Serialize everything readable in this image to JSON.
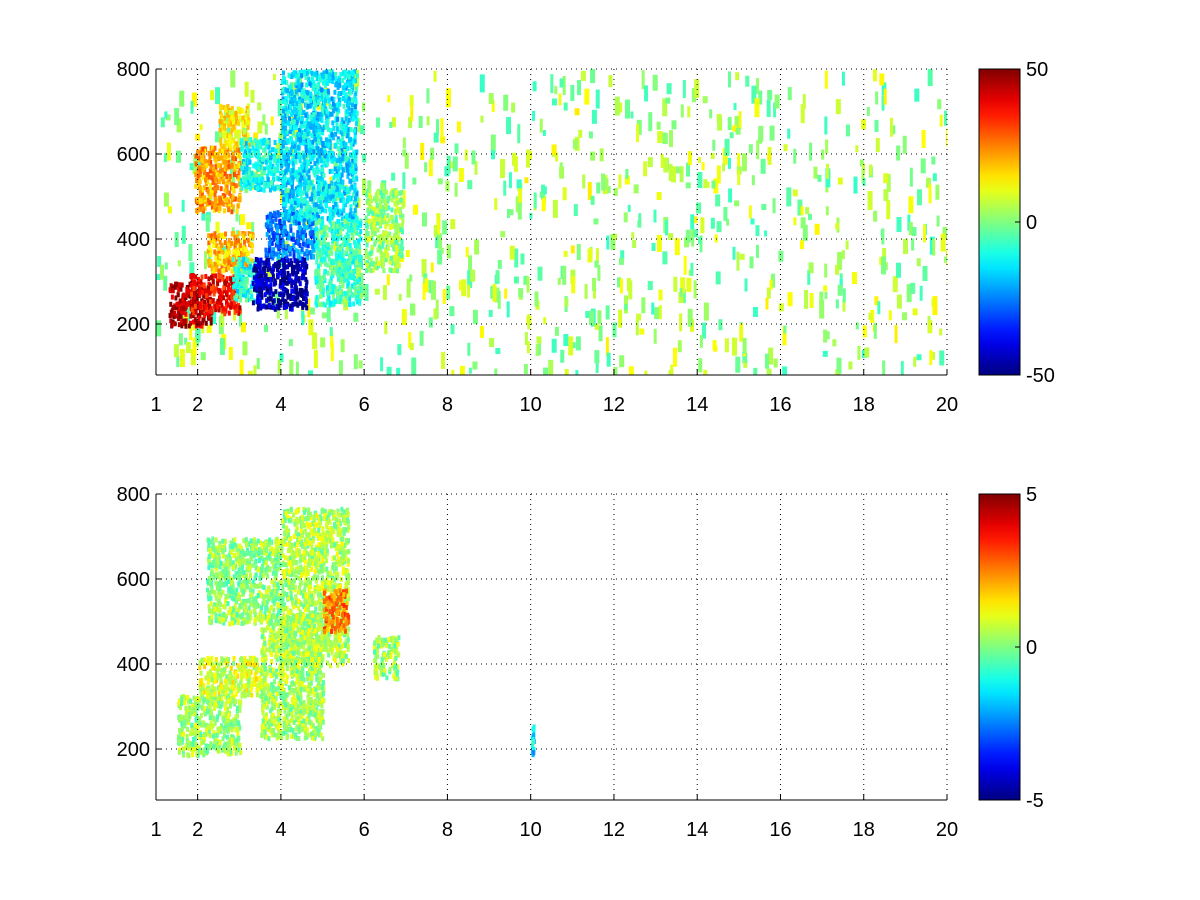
{
  "chart_data": [
    {
      "type": "heatmap",
      "title": "",
      "xlabel": "",
      "ylabel": "",
      "xlim": [
        1,
        20
      ],
      "ylim": [
        80,
        800
      ],
      "grid": true,
      "grid_style": "dotted",
      "colormap": "jet",
      "xticks": [
        1,
        2,
        4,
        6,
        8,
        10,
        12,
        14,
        16,
        18,
        20
      ],
      "yticks": [
        200,
        400,
        600,
        800
      ],
      "colorbar": {
        "range": [
          -50,
          50
        ],
        "ticks": [
          50,
          0,
          -50
        ]
      },
      "regions": [
        {
          "x": [
            1.3,
            2.3
          ],
          "y": [
            200,
            300
          ],
          "value": 45
        },
        {
          "x": [
            1.8,
            3.0
          ],
          "y": [
            230,
            320
          ],
          "value": 38
        },
        {
          "x": [
            2.2,
            3.3
          ],
          "y": [
            330,
            420
          ],
          "value": 20
        },
        {
          "x": [
            1.9,
            3.0
          ],
          "y": [
            470,
            620
          ],
          "value": 22
        },
        {
          "x": [
            2.5,
            3.2
          ],
          "y": [
            620,
            720
          ],
          "value": 14
        },
        {
          "x": [
            2.8,
            3.5
          ],
          "y": [
            260,
            360
          ],
          "value": -10
        },
        {
          "x": [
            3.3,
            4.6
          ],
          "y": [
            240,
            360
          ],
          "value": -45
        },
        {
          "x": [
            3.6,
            4.8
          ],
          "y": [
            360,
            470
          ],
          "value": -25
        },
        {
          "x": [
            3.0,
            4.0
          ],
          "y": [
            520,
            640
          ],
          "value": -12
        },
        {
          "x": [
            4.0,
            5.8
          ],
          "y": [
            450,
            800
          ],
          "value": -15
        },
        {
          "x": [
            4.8,
            5.9
          ],
          "y": [
            250,
            450
          ],
          "value": -6
        },
        {
          "x": [
            6.0,
            6.9
          ],
          "y": [
            330,
            520
          ],
          "value": 2
        }
      ]
    },
    {
      "type": "heatmap",
      "title": "",
      "xlabel": "",
      "ylabel": "",
      "xlim": [
        1,
        20
      ],
      "ylim": [
        80,
        800
      ],
      "grid": true,
      "grid_style": "dotted",
      "colormap": "jet",
      "xticks": [
        1,
        2,
        4,
        6,
        8,
        10,
        12,
        14,
        16,
        18,
        20
      ],
      "yticks": [
        200,
        400,
        600,
        800
      ],
      "colorbar": {
        "range": [
          -5,
          5
        ],
        "ticks": [
          5,
          0,
          -5
        ]
      },
      "regions": [
        {
          "x": [
            1.5,
            3.0
          ],
          "y": [
            190,
            330
          ],
          "value": 0.3
        },
        {
          "x": [
            2.0,
            3.6
          ],
          "y": [
            330,
            420
          ],
          "value": 0.8
        },
        {
          "x": [
            2.2,
            4.0
          ],
          "y": [
            500,
            700
          ],
          "value": 0.2
        },
        {
          "x": [
            3.5,
            5.0
          ],
          "y": [
            230,
            520
          ],
          "value": 0.4
        },
        {
          "x": [
            4.0,
            5.6
          ],
          "y": [
            400,
            770
          ],
          "value": 0.5
        },
        {
          "x": [
            5.0,
            5.6
          ],
          "y": [
            480,
            580
          ],
          "value": 2.5
        },
        {
          "x": [
            6.2,
            6.8
          ],
          "y": [
            370,
            470
          ],
          "value": 0.3
        },
        {
          "x": [
            10.0,
            10.05
          ],
          "y": [
            190,
            260
          ],
          "value": -1.5
        }
      ]
    }
  ]
}
